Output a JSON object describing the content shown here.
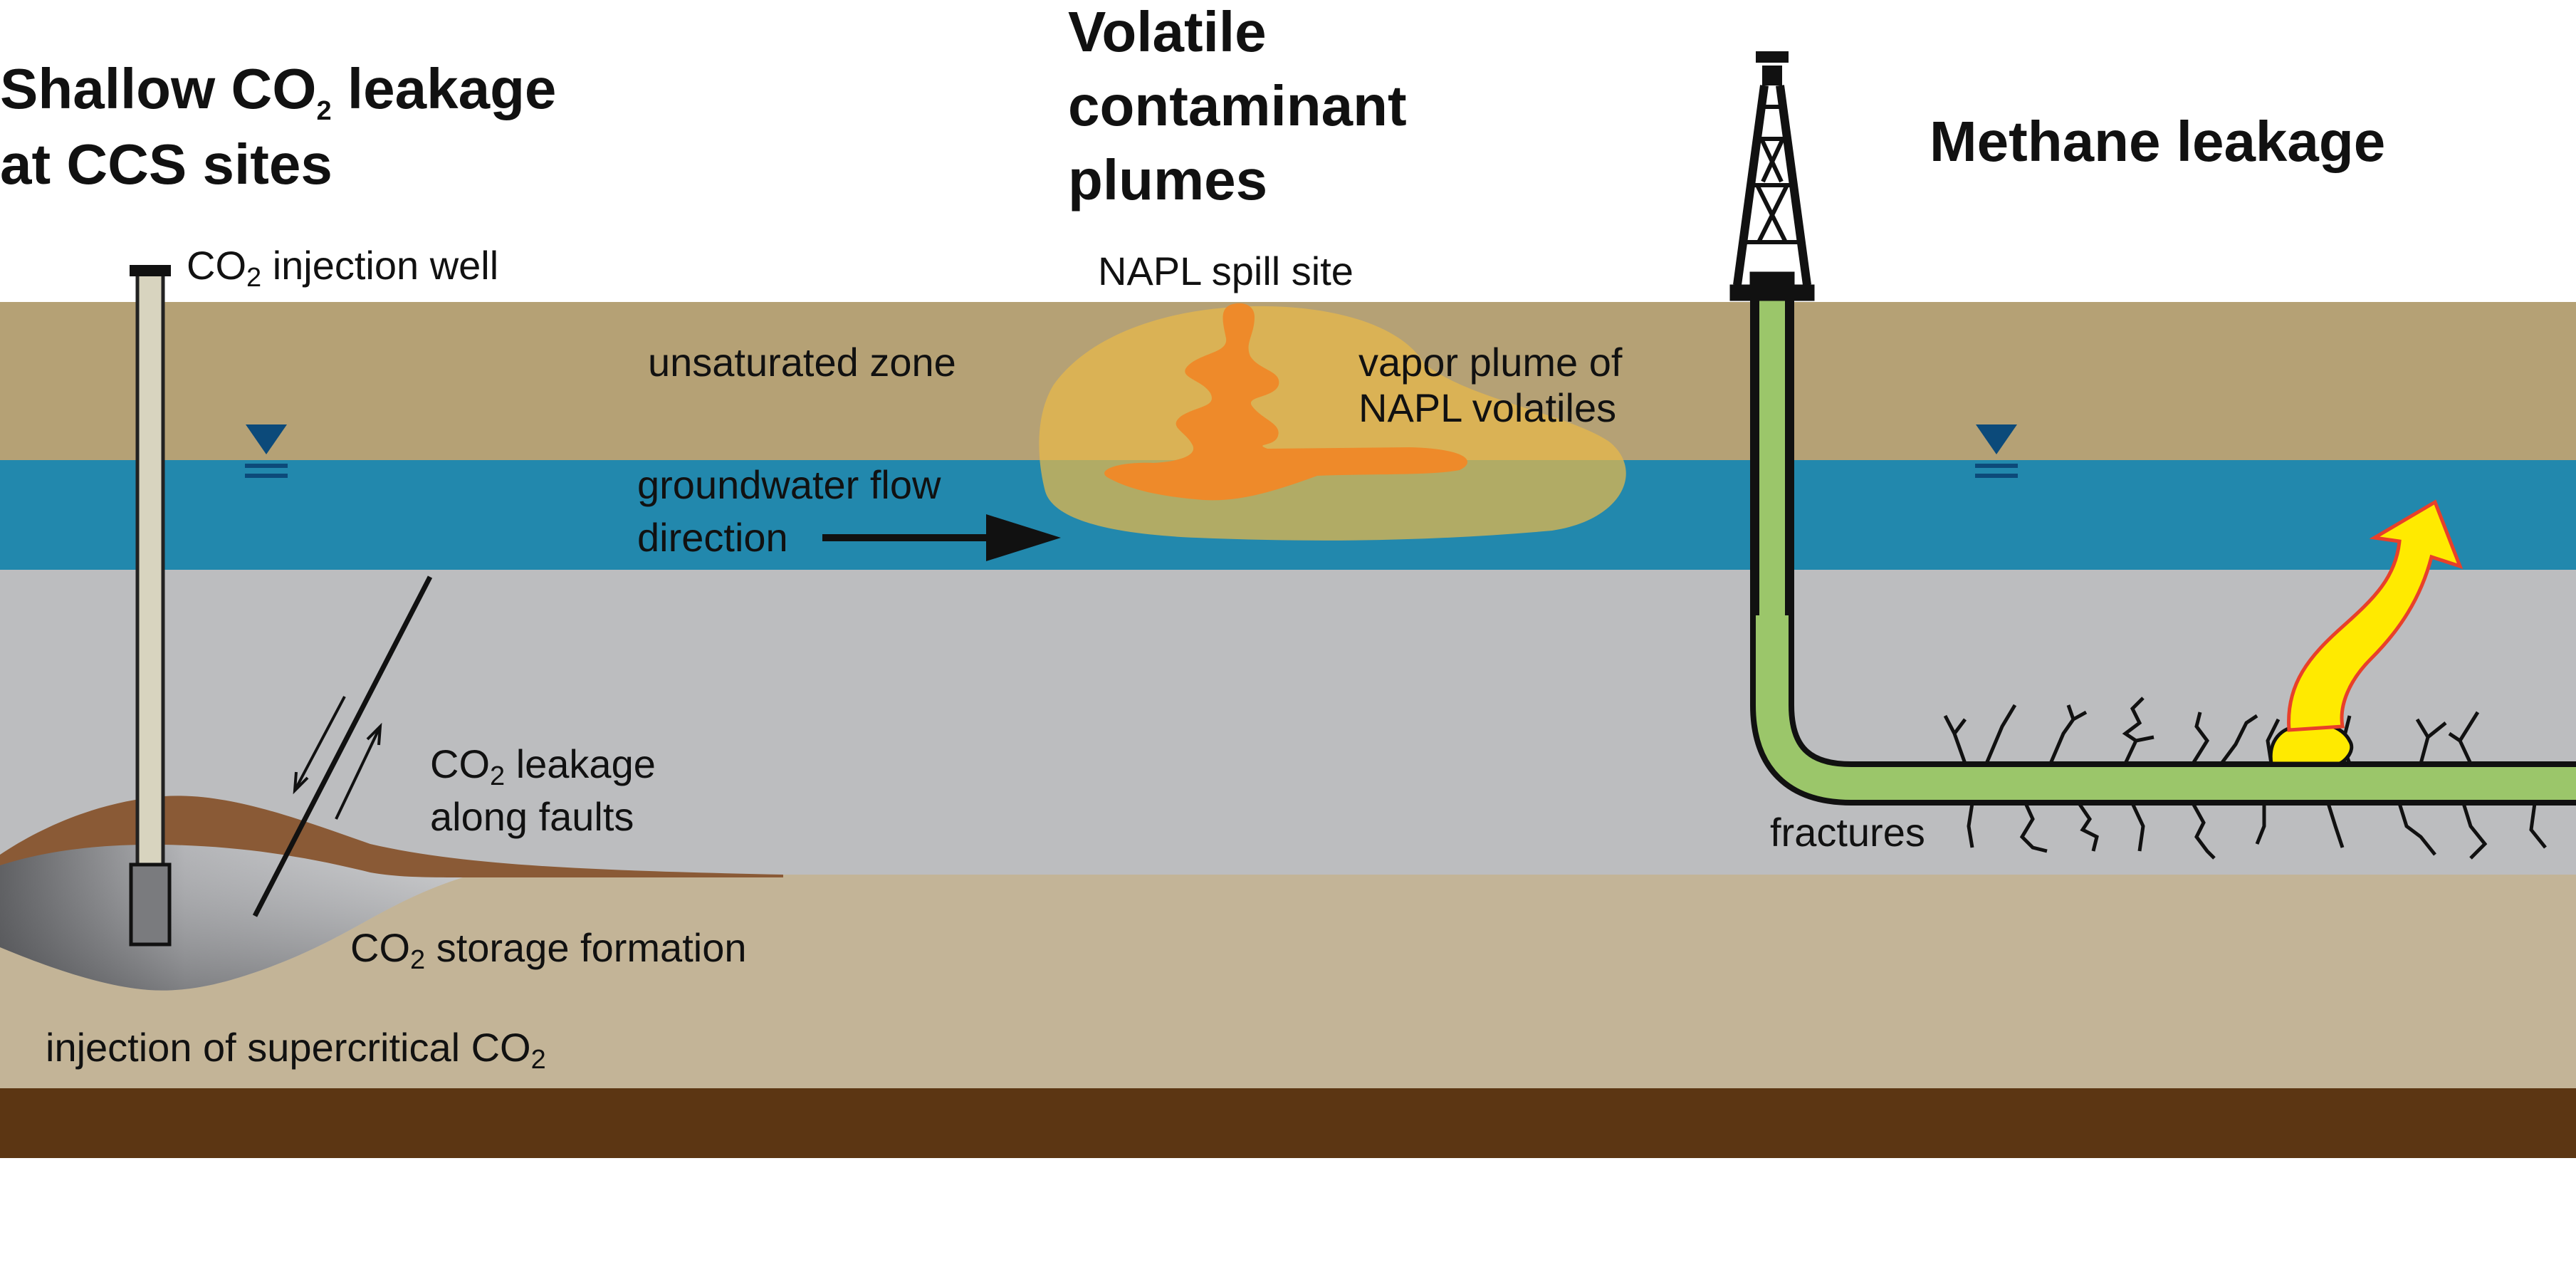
{
  "sections": {
    "ccs": {
      "title_line1_a": "Shallow CO",
      "title_line1_sub": "2",
      "title_line1_b": " leakage",
      "title_line2": "at CCS sites"
    },
    "voc": {
      "title_line1": "Volatile",
      "title_line2": "contaminant",
      "title_line3": "plumes"
    },
    "methane": {
      "title": "Methane leakage"
    }
  },
  "labels": {
    "injection_well_a": "CO",
    "injection_well_sub": "2",
    "injection_well_b": "  injection well",
    "napl_spill": "NAPL spill site",
    "unsaturated": "unsaturated zone",
    "vapor_line1": "vapor plume of",
    "vapor_line2": "NAPL volatiles",
    "gw_line1": "groundwater flow",
    "gw_line2": "direction",
    "fault_line1_a": "CO",
    "fault_line1_sub": "2",
    "fault_line1_b": " leakage",
    "fault_line2": "along faults",
    "storage_a": "CO",
    "storage_sub": "2",
    "storage_b": " storage formation",
    "supercritical_a": "injection of supercritical CO",
    "supercritical_sub": "2",
    "fractures": "fractures"
  },
  "colors": {
    "unsaturated_zone": "#b5a175",
    "aquifer": "#2288ad",
    "aquitard": "#bcbdbf",
    "storage_layer": "#c3b497",
    "bedrock": "#5c3613",
    "caprock": "#8a5a36",
    "co2_plume": "#8f9093",
    "vapor_plume": "#e8b84a",
    "napl": "#ee8a2a",
    "well_pipe": "#9bc66a",
    "methane": "#ffea00",
    "water_table_symbol": "#0c4a7a"
  },
  "icons": [
    "water-table-icon",
    "drilling-rig-icon",
    "flow-arrow-icon",
    "methane-arrow-icon",
    "fault-arrow-icon"
  ]
}
